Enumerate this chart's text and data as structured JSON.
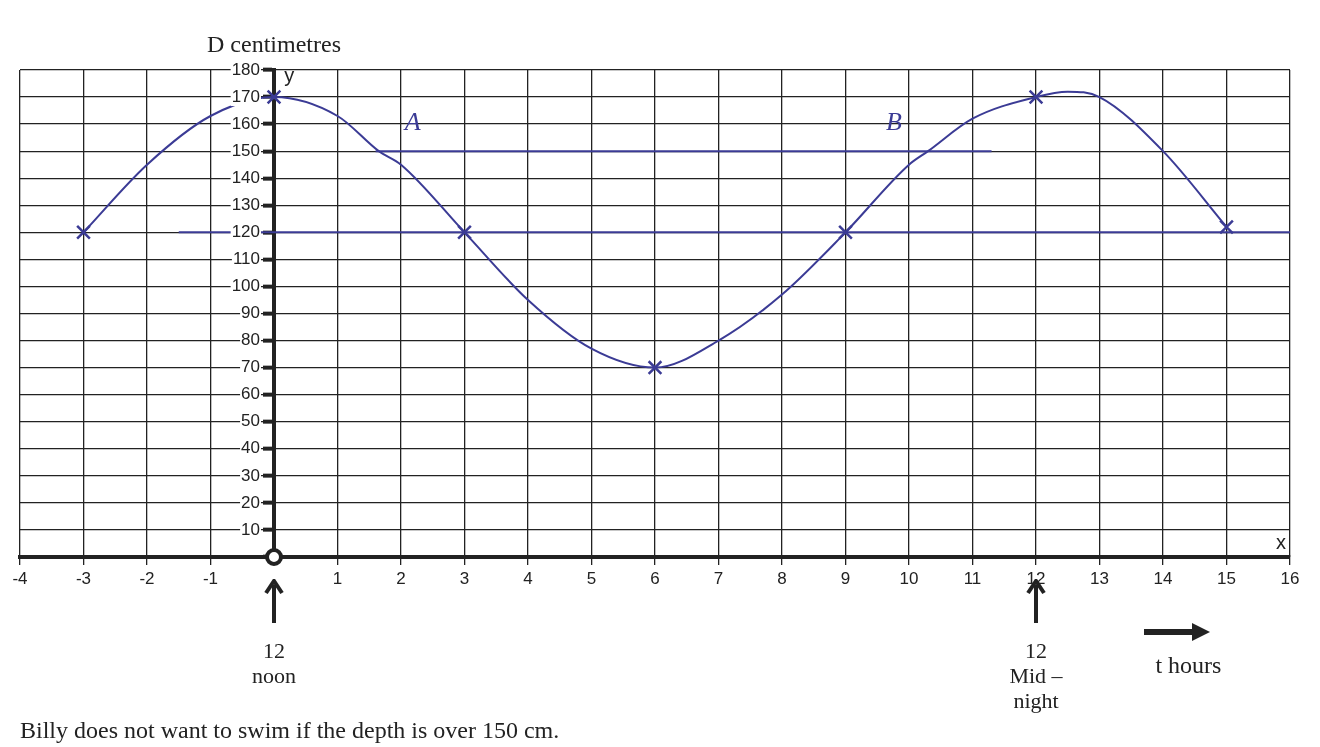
{
  "chart_data": {
    "type": "line",
    "xlabel": "t hours",
    "ylabel": "D centimetres",
    "xlim": [
      -4,
      16
    ],
    "ylim": [
      0,
      180
    ],
    "xticks": [
      -4,
      -3,
      -2,
      -1,
      {
        "value": 0,
        "label": null
      },
      1,
      2,
      3,
      4,
      5,
      6,
      7,
      8,
      9,
      10,
      11,
      12,
      13,
      14,
      15,
      16
    ],
    "yticks": [
      {
        "value": 0,
        "label": null
      },
      10,
      20,
      30,
      40,
      50,
      60,
      70,
      80,
      90,
      100,
      110,
      120,
      130,
      140,
      150,
      160,
      170,
      180
    ],
    "grid": true,
    "legend": false,
    "series": [
      {
        "type": "line",
        "color": "#3b3b95",
        "marker": "none",
        "x": [
          -3,
          -2,
          -1,
          0,
          1,
          1.65,
          2,
          3,
          4,
          5,
          6,
          7,
          8,
          9,
          10,
          10.3,
          11,
          12,
          12.5,
          13,
          14,
          15
        ],
        "values": [
          120,
          145,
          163,
          170,
          163,
          150,
          145,
          120,
          95,
          77,
          70,
          80,
          97,
          120,
          145,
          150,
          162,
          170,
          172,
          170,
          150,
          122
        ]
      },
      {
        "type": "scatter",
        "color": "#3b3b95",
        "marker": "cross",
        "x": [
          -3,
          0,
          3,
          6,
          9,
          12,
          15
        ],
        "values": [
          120,
          170,
          120,
          70,
          120,
          170,
          122
        ]
      },
      {
        "type": "line",
        "color": "#3b3b95",
        "marker": "none",
        "x": [
          1.6,
          11.3
        ],
        "values": [
          150,
          150
        ]
      },
      {
        "type": "line",
        "color": "#3b3b95",
        "marker": "none",
        "x": [
          -1.5,
          16
        ],
        "values": [
          120,
          120
        ]
      }
    ],
    "annotations": [
      {
        "text": "A",
        "x": 1.65,
        "y": 150
      },
      {
        "text": "B",
        "x": 10.3,
        "y": 150
      },
      "12\nnoon",
      "12\nMid –\nnight",
      "y",
      "x",
      "Billy does not want to swim if the depth is over 150 cm."
    ]
  }
}
